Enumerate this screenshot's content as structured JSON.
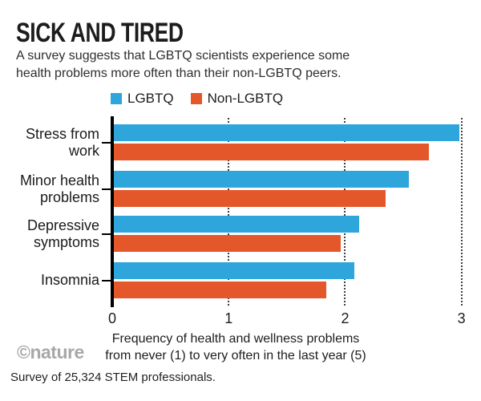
{
  "header": {
    "title": "SICK AND TIRED",
    "subtitle_lines": [
      "A survey suggests that LGBTQ scientists experience some",
      "health problems more often than their non-LGBTQ peers."
    ]
  },
  "legend": [
    {
      "label": "LGBTQ",
      "color": "#2EA6DC"
    },
    {
      "label": "Non-LGBTQ",
      "color": "#E4572B"
    }
  ],
  "chart_data": {
    "type": "bar",
    "orientation": "horizontal",
    "title": "SICK AND TIRED",
    "categories": [
      "Stress from work",
      "Minor health problems",
      "Depressive symptoms",
      "Insomnia"
    ],
    "series": [
      {
        "name": "LGBTQ",
        "color": "#2EA6DC",
        "values": [
          2.98,
          2.55,
          2.12,
          2.08
        ]
      },
      {
        "name": "Non-LGBTQ",
        "color": "#E4572B",
        "values": [
          2.72,
          2.35,
          1.96,
          1.84
        ]
      }
    ],
    "xlim": [
      0,
      3
    ],
    "xticks": [
      0,
      1,
      2,
      3
    ],
    "xlabel": "Frequency of health and wellness problems from never (1) to very often in the last year (5)",
    "grid": "dotted-vertical-gridlines",
    "legend_position": "top"
  },
  "xaxis": {
    "caption_lines": [
      "Frequency of health and wellness problems",
      "from never (1) to very often in the last year (5)"
    ]
  },
  "footer": {
    "credit": "©nature",
    "source": "Survey of 25,324 STEM professionals."
  }
}
